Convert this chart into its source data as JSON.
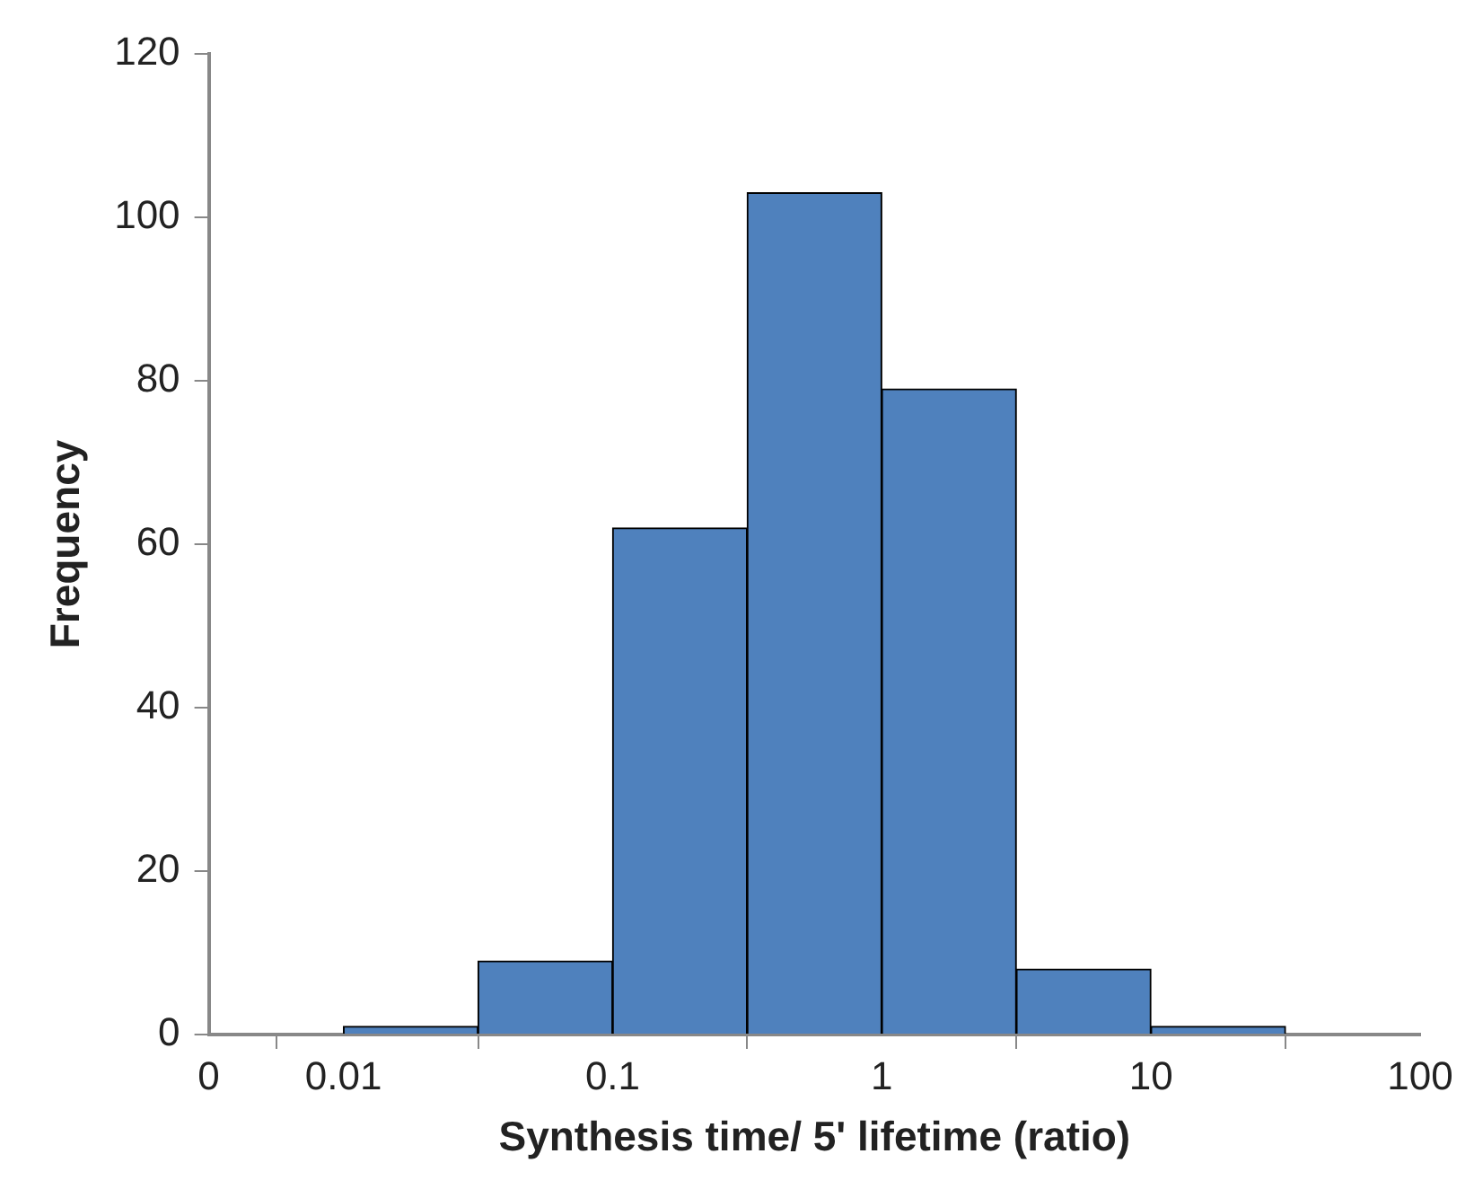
{
  "chart_data": {
    "type": "histogram",
    "xlabel": "Synthesis time/ 5' lifetime (ratio)",
    "ylabel": "Frequency",
    "bins": [
      0.01,
      0.0316,
      0.1,
      0.316,
      1,
      3.16,
      10,
      31.6
    ],
    "values": [
      1,
      9,
      62,
      103,
      79,
      8,
      1
    ],
    "color": "#4f81bd",
    "log": "x",
    "xlim": [
      0.00316,
      100
    ],
    "xticks": [
      {
        "value": 0.00316,
        "label": "0"
      },
      0.01,
      0.1,
      1,
      10,
      100
    ],
    "ylim": [
      0,
      120
    ],
    "yticks": [
      0,
      20,
      40,
      60,
      80,
      100,
      120
    ],
    "grid": false,
    "legend": false
  }
}
